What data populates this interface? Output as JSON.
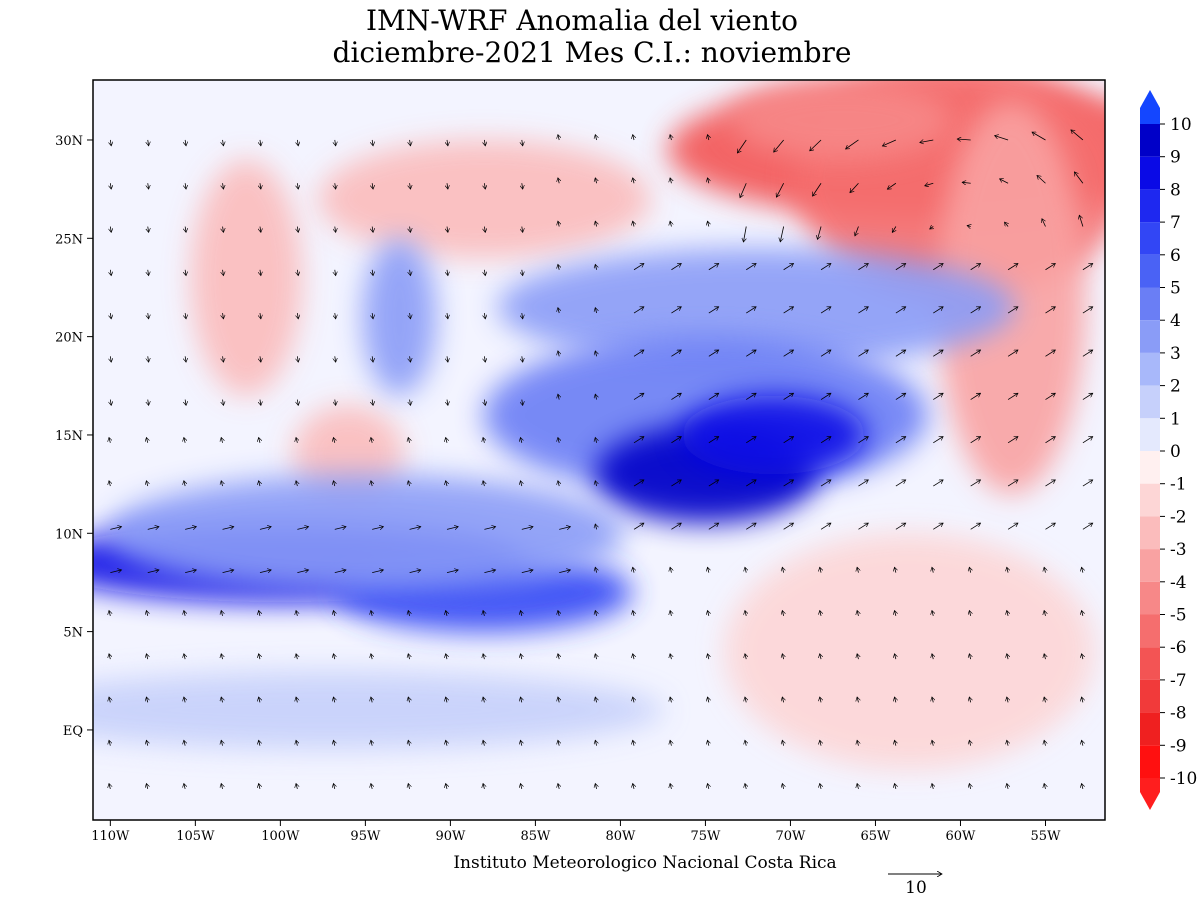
{
  "title": "IMN-WRF Anomalia del viento",
  "subtitle": "diciembre-2021 Mes C.I.: noviembre",
  "map": {
    "lonlim": [
      -111.02,
      -51.5
    ],
    "latlim": [
      -4.58,
      33.05
    ],
    "lon_ticks": [
      {
        "value": -110,
        "label": "110W"
      },
      {
        "value": -105,
        "label": "105W"
      },
      {
        "value": -100,
        "label": "100W"
      },
      {
        "value": -95,
        "label": "95W"
      },
      {
        "value": -90,
        "label": "90W"
      },
      {
        "value": -85,
        "label": "85W"
      },
      {
        "value": -80,
        "label": "80W"
      },
      {
        "value": -75,
        "label": "75W"
      },
      {
        "value": -70,
        "label": "70W"
      },
      {
        "value": -65,
        "label": "65W"
      },
      {
        "value": -60,
        "label": "60W"
      },
      {
        "value": -55,
        "label": "55W"
      }
    ],
    "lat_ticks": [
      {
        "value": 30,
        "label": "30N"
      },
      {
        "value": 25,
        "label": "25N"
      },
      {
        "value": 20,
        "label": "20N"
      },
      {
        "value": 15,
        "label": "15N"
      },
      {
        "value": 10,
        "label": "10N"
      },
      {
        "value": 5,
        "label": "5N"
      },
      {
        "value": 0,
        "label": "EQ"
      }
    ]
  },
  "colorbar": {
    "levels": [
      10,
      9,
      8,
      7,
      6,
      5,
      4,
      3,
      2,
      1,
      0,
      -1,
      -2,
      -3,
      -4,
      -5,
      -6,
      -7,
      -8,
      -9,
      -10
    ],
    "colors": [
      "#1446ff",
      "#0000c8",
      "#0a0ae6",
      "#1e28f0",
      "#3246f5",
      "#4a62f5",
      "#6a7ef5",
      "#8a9cf7",
      "#a8b8fa",
      "#c6d0fb",
      "#e4e9fd",
      "#fff0f0",
      "#fdd6d6",
      "#fbbcbc",
      "#f9a2a2",
      "#f78888",
      "#f56e6e",
      "#f35454",
      "#f13a3a",
      "#ef2020",
      "#ff1010",
      "#ff1e1e"
    ]
  },
  "footer": "Instituto Meteorologico Nacional Costa Rica",
  "reference_vector": {
    "label": "10"
  }
}
